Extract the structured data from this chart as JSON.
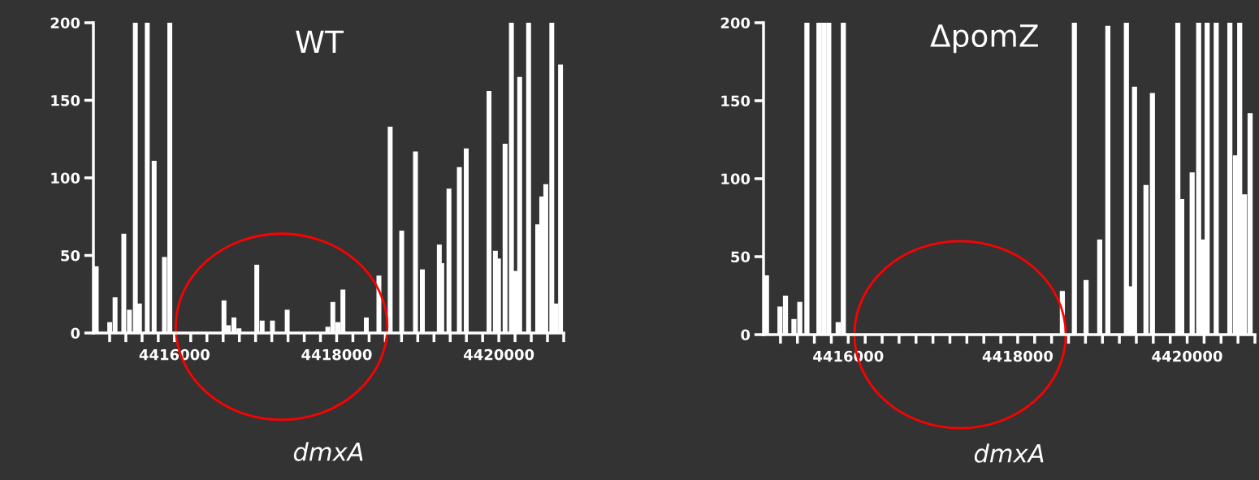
{
  "chart_data": [
    {
      "type": "bar",
      "title": "WT",
      "xlabel": "dmxA",
      "color": "#ffffff",
      "x": [
        4415035,
        4415201,
        4415267,
        4415375,
        4415444,
        4415517,
        4415568,
        4415664,
        4415749,
        4415876,
        4415942,
        4416610,
        4416664,
        4416733,
        4416795,
        4417015,
        4417081,
        4417208,
        4417390,
        4417891,
        4417953,
        4418015,
        4418077,
        4418366,
        4418521,
        4418660,
        4418802,
        4418972,
        4419057,
        4419266,
        4419296,
        4419385,
        4419513,
        4419598,
        4419879,
        4419957,
        4419996,
        4420077,
        4420155,
        4420208,
        4420257,
        4420367,
        4420479,
        4420529,
        4420579,
        4420653,
        4420703,
        4420761
      ],
      "values": [
        43,
        7,
        23,
        64,
        15,
        200,
        19,
        200,
        111,
        49,
        200,
        21,
        5,
        10,
        3,
        44,
        8,
        8,
        15,
        4,
        20,
        7,
        28,
        10,
        37,
        133,
        66,
        117,
        41,
        57,
        45,
        93,
        107,
        119,
        156,
        53,
        48,
        122,
        200,
        40,
        165,
        200,
        70,
        88,
        96,
        200,
        19,
        173
      ],
      "xlim": [
        4415000,
        4420800
      ],
      "ylim": [
        0,
        200
      ],
      "yticks": [
        0,
        50,
        100,
        150,
        200
      ],
      "xticks": [
        {
          "value": 4415200,
          "label": null
        },
        {
          "value": 4415400,
          "label": null
        },
        {
          "value": 4415600,
          "label": null
        },
        {
          "value": 4415800,
          "label": null
        },
        4416000,
        {
          "value": 4416200,
          "label": null
        },
        {
          "value": 4416400,
          "label": null
        },
        {
          "value": 4416600,
          "label": null
        },
        {
          "value": 4416800,
          "label": null
        },
        {
          "value": 4417000,
          "label": null
        },
        {
          "value": 4417200,
          "label": null
        },
        {
          "value": 4417400,
          "label": null
        },
        {
          "value": 4417600,
          "label": null
        },
        {
          "value": 4417800,
          "label": null
        },
        4418000,
        {
          "value": 4418200,
          "label": null
        },
        {
          "value": 4418400,
          "label": null
        },
        {
          "value": 4418600,
          "label": null
        },
        {
          "value": 4418800,
          "label": null
        },
        {
          "value": 4419000,
          "label": null
        },
        {
          "value": 4419200,
          "label": null
        },
        {
          "value": 4419400,
          "label": null
        },
        {
          "value": 4419600,
          "label": null
        },
        {
          "value": 4419800,
          "label": null
        },
        4420000,
        {
          "value": 4420200,
          "label": null
        },
        {
          "value": 4420400,
          "label": null
        },
        {
          "value": 4420600,
          "label": null
        },
        {
          "value": 4420800,
          "label": null
        }
      ],
      "grid": false,
      "legend": false
    },
    {
      "type": "bar",
      "title": "ΔpomZ",
      "xlabel": "dmxA",
      "color": "#ffffff",
      "x": [
        4415035,
        4415194,
        4415259,
        4415359,
        4415428,
        4415512,
        4415654,
        4415712,
        4415770,
        4415881,
        4415942,
        4418527,
        4418669,
        4418807,
        4418968,
        4419064,
        4419283,
        4419329,
        4419379,
        4419514,
        4419590,
        4419890,
        4419936,
        4420005,
        4420059,
        4420136,
        4420186,
        4420236,
        4420343,
        4420504,
        4420570,
        4420620,
        4420677,
        4420743
      ],
      "values": [
        38,
        18,
        25,
        10,
        21,
        200,
        200,
        200,
        200,
        8,
        200,
        28,
        200,
        35,
        61,
        198,
        200,
        31,
        159,
        96,
        155,
        200,
        87,
        null,
        104,
        200,
        61,
        200,
        200,
        200,
        115,
        200,
        90,
        142
      ],
      "xlim": [
        4415000,
        4420800
      ],
      "ylim": [
        0,
        200
      ],
      "yticks": [
        0,
        50,
        100,
        150,
        200
      ],
      "xticks": [
        {
          "value": 4415200,
          "label": null
        },
        {
          "value": 4415400,
          "label": null
        },
        {
          "value": 4415600,
          "label": null
        },
        {
          "value": 4415800,
          "label": null
        },
        4416000,
        {
          "value": 4416200,
          "label": null
        },
        {
          "value": 4416400,
          "label": null
        },
        {
          "value": 4416600,
          "label": null
        },
        {
          "value": 4416800,
          "label": null
        },
        {
          "value": 4417000,
          "label": null
        },
        {
          "value": 4417200,
          "label": null
        },
        {
          "value": 4417400,
          "label": null
        },
        {
          "value": 4417600,
          "label": null
        },
        {
          "value": 4417800,
          "label": null
        },
        4418000,
        {
          "value": 4418200,
          "label": null
        },
        {
          "value": 4418400,
          "label": null
        },
        {
          "value": 4418600,
          "label": null
        },
        {
          "value": 4418800,
          "label": null
        },
        {
          "value": 4419000,
          "label": null
        },
        {
          "value": 4419200,
          "label": null
        },
        {
          "value": 4419400,
          "label": null
        },
        {
          "value": 4419600,
          "label": null
        },
        {
          "value": 4419800,
          "label": null
        },
        4420000,
        {
          "value": 4420200,
          "label": null
        },
        {
          "value": 4420400,
          "label": null
        },
        {
          "value": 4420600,
          "label": null
        },
        {
          "value": 4420800,
          "label": null
        }
      ],
      "grid": false,
      "legend": false
    }
  ]
}
